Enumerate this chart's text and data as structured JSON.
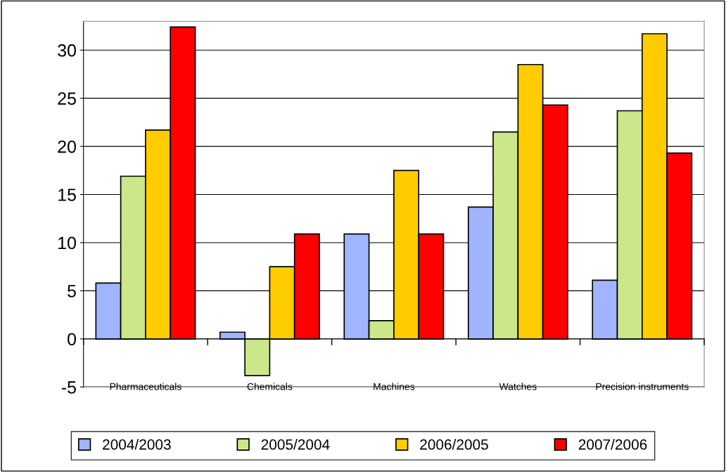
{
  "chart_data": {
    "type": "bar",
    "categories": [
      "Pharmaceuticals",
      "Chemicals",
      "Machines",
      "Watches",
      "Precision instruments"
    ],
    "series": [
      {
        "name": "2004/2003",
        "color": "#a0b4ff",
        "values": [
          5.8,
          0.7,
          10.9,
          13.7,
          6.1
        ]
      },
      {
        "name": "2005/2004",
        "color": "#cce68a",
        "values": [
          16.9,
          -3.8,
          1.9,
          21.5,
          23.7
        ]
      },
      {
        "name": "2006/2005",
        "color": "#ffcc00",
        "values": [
          21.7,
          7.5,
          17.5,
          28.5,
          31.7
        ]
      },
      {
        "name": "2007/2006",
        "color": "#ff0000",
        "values": [
          32.4,
          10.9,
          10.9,
          24.3,
          19.3
        ]
      }
    ],
    "ylim": [
      -5,
      33
    ],
    "yticks": [
      -5,
      0,
      5,
      10,
      15,
      20,
      25,
      30
    ],
    "grid": "y",
    "legend": "bottom"
  }
}
